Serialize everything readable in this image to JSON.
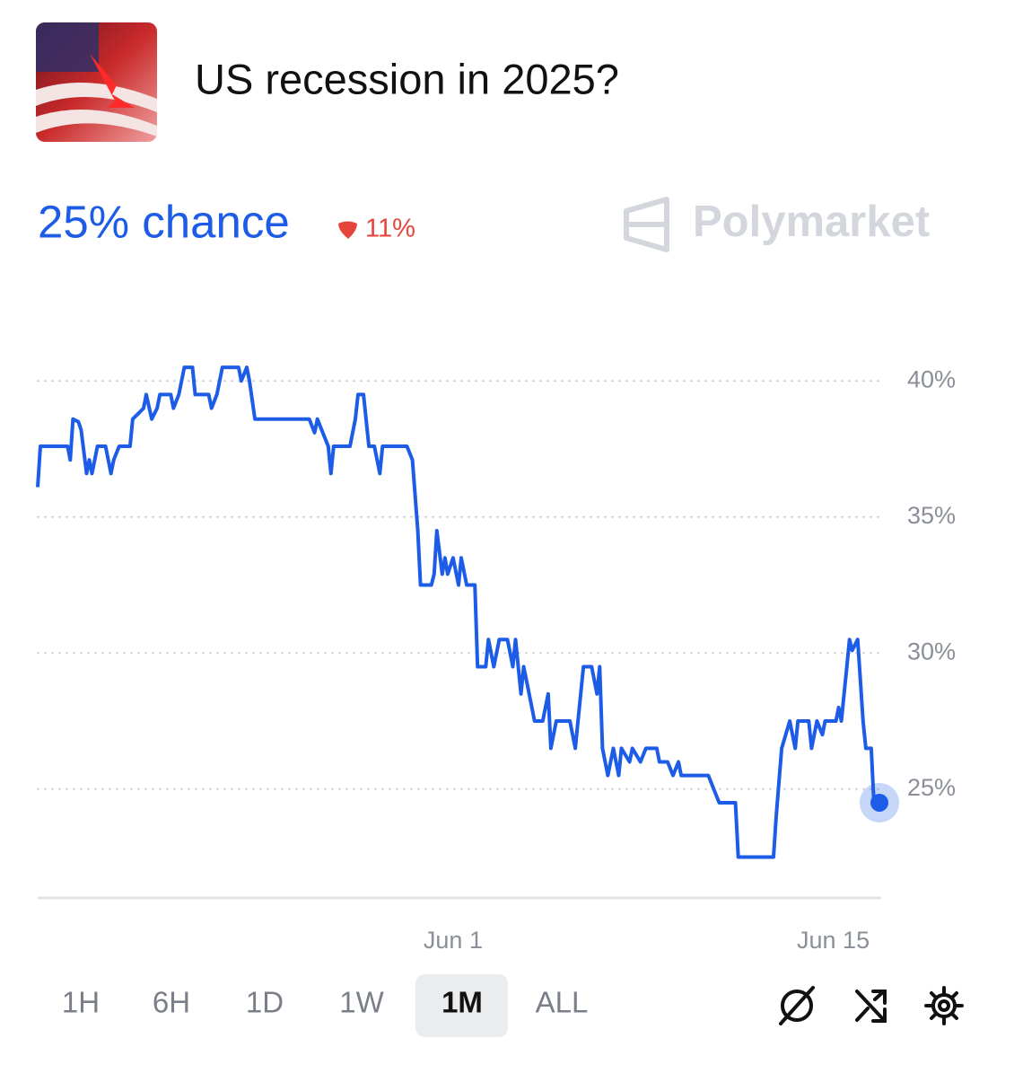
{
  "header": {
    "title": "US recession in 2025?"
  },
  "summary": {
    "chance": "25% chance",
    "change": "11%"
  },
  "brand": "Polymarket",
  "chart_data": {
    "type": "line",
    "color": "#1d5ce6",
    "grid": true,
    "x": [
      -15.3,
      -15.2,
      -14.2,
      -14.1,
      -14.0,
      -13.8,
      -13.7,
      -13.5,
      -13.4,
      -13.3,
      -13.1,
      -12.8,
      -12.6,
      -12.5,
      -12.3,
      -11.9,
      -11.8,
      -11.6,
      -11.4,
      -11.3,
      -11.1,
      -10.9,
      -10.8,
      -10.4,
      -10.3,
      -10.1,
      -9.9,
      -9.6,
      -9.5,
      -9.0,
      -8.9,
      -8.7,
      -8.5,
      -7.9,
      -7.8,
      -7.6,
      -7.5,
      -7.3,
      -5.3,
      -5.1,
      -5.0,
      -4.8,
      -4.6,
      -4.5,
      -4.4,
      -3.8,
      -3.6,
      -3.5,
      -3.3,
      -3.1,
      -2.9,
      -2.7,
      -2.6,
      -2.0,
      -1.7,
      -1.5,
      -1.3,
      -1.2,
      -0.8,
      -0.7,
      -0.6,
      -0.4,
      -0.3,
      -0.2,
      0,
      0.2,
      0.3,
      0.5,
      0.8,
      0.9,
      1.2,
      1.3,
      1.5,
      1.7,
      2.0,
      2.2,
      2.3,
      2.5,
      2.6,
      2.8,
      3.0,
      3.3,
      3.5,
      3.6,
      3.8,
      4.3,
      4.5,
      4.6,
      4.8,
      5.1,
      5.3,
      5.4,
      5.5,
      5.7,
      5.9,
      6.1,
      6.2,
      6.5,
      6.6,
      6.9,
      7.1,
      7.5,
      7.6,
      7.9,
      8.1,
      8.3,
      8.4,
      9.4,
      9.6,
      9.8,
      10.4,
      10.5,
      11.8,
      11.9,
      12.1,
      12.4,
      12.6,
      12.7,
      13.1,
      13.2,
      13.4,
      13.6,
      13.7,
      14.1,
      14.2,
      14.3,
      14.5,
      14.6,
      14.7,
      14.9,
      15.1,
      15.2,
      15.4,
      15.5,
      15.7
    ],
    "values": [
      36.1,
      37.6,
      37.6,
      37.1,
      38.6,
      38.5,
      38.2,
      36.6,
      37.1,
      36.6,
      37.6,
      37.6,
      36.6,
      37.1,
      37.6,
      37.6,
      38.6,
      38.8,
      39.0,
      39.5,
      38.6,
      39.0,
      39.5,
      39.5,
      39.0,
      39.5,
      40.5,
      40.5,
      39.5,
      39.5,
      39.0,
      39.5,
      40.5,
      40.5,
      40.0,
      40.5,
      40.0,
      38.6,
      38.6,
      38.1,
      38.6,
      38.1,
      37.6,
      36.6,
      37.6,
      37.6,
      38.6,
      39.5,
      39.5,
      37.6,
      37.6,
      36.6,
      37.6,
      37.6,
      37.6,
      37.1,
      34.5,
      32.5,
      32.5,
      32.9,
      34.5,
      32.9,
      33.5,
      32.9,
      33.5,
      32.5,
      33.5,
      32.5,
      32.5,
      29.5,
      29.5,
      30.5,
      29.5,
      30.5,
      30.5,
      29.5,
      30.5,
      28.5,
      29.5,
      28.5,
      27.5,
      27.5,
      28.5,
      26.5,
      27.5,
      27.5,
      26.5,
      27.5,
      29.5,
      29.5,
      28.5,
      29.5,
      26.5,
      25.5,
      26.5,
      25.5,
      26.5,
      26.0,
      26.5,
      26.0,
      26.5,
      26.5,
      26.0,
      26.0,
      25.5,
      26.0,
      25.5,
      25.5,
      25.0,
      24.5,
      24.5,
      22.5,
      22.5,
      24.0,
      26.5,
      27.5,
      26.5,
      27.5,
      27.5,
      26.5,
      27.5,
      27.0,
      27.5,
      27.5,
      28.0,
      27.5,
      29.5,
      30.5,
      30.1,
      30.5,
      27.5,
      26.5,
      26.5,
      24.5,
      24.5
    ],
    "ylim": [
      21,
      41
    ],
    "yticks": [
      {
        "value": 25,
        "label": "25%"
      },
      {
        "value": 30,
        "label": "30%"
      },
      {
        "value": 35,
        "label": "35%"
      },
      {
        "value": 40,
        "label": "40%"
      }
    ],
    "xlim": [
      -15.3,
      15.7
    ],
    "xticks": [
      {
        "value": 0,
        "label": "Jun 1"
      },
      {
        "value": 14,
        "label": "Jun 15"
      }
    ]
  },
  "range_buttons": [
    "1H",
    "6H",
    "1D",
    "1W",
    "1M",
    "ALL"
  ],
  "selected_range": 4
}
